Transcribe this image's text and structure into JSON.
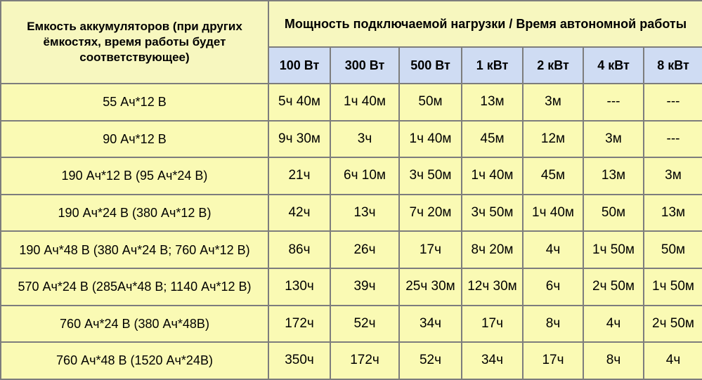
{
  "header": {
    "left": "Емкость аккумуляторов (при других ёмкостях, время работы будет соответствующее)",
    "top": "Мощность подключаемой нагрузки / Время автономной работы",
    "columns": [
      "100 Вт",
      "300 Вт",
      "500 Вт",
      "1 кВт",
      "2 кВт",
      "4 кВт",
      "8 кВт"
    ]
  },
  "rows": [
    {
      "capacity": "55 Ач*12 В",
      "values": [
        "5ч 40м",
        "1ч 40м",
        "50м",
        "13м",
        "3м",
        "---",
        "---"
      ]
    },
    {
      "capacity": "90 Ач*12 В",
      "values": [
        "9ч 30м",
        "3ч",
        "1ч 40м",
        "45м",
        "12м",
        "3м",
        "---"
      ]
    },
    {
      "capacity": "190 Ач*12 В (95 Ач*24 В)",
      "values": [
        "21ч",
        "6ч 10м",
        "3ч 50м",
        "1ч 40м",
        "45м",
        "13м",
        "3м"
      ]
    },
    {
      "capacity": "190 Ач*24 В (380 Ач*12 В)",
      "values": [
        "42ч",
        "13ч",
        "7ч 20м",
        "3ч 50м",
        "1ч 40м",
        "50м",
        "13м"
      ]
    },
    {
      "capacity": "190 Ач*48 В (380 Ач*24 В; 760 Ач*12 В)",
      "values": [
        "86ч",
        "26ч",
        "17ч",
        "8ч 20м",
        "4ч",
        "1ч 50м",
        "50м"
      ]
    },
    {
      "capacity": "570 Ач*24 В  (285Ач*48 В; 1140 Ач*12 В)",
      "values": [
        "130ч",
        "39ч",
        "25ч 30м",
        "12ч 30м",
        "6ч",
        "2ч 50м",
        "1ч 50м"
      ]
    },
    {
      "capacity": "760 Ач*24 В (380 Ач*48В)",
      "values": [
        "172ч",
        "52ч",
        "34ч",
        "17ч",
        "8ч",
        "4ч",
        "2ч 50м"
      ]
    },
    {
      "capacity": "760 Ач*48 В (1520 Ач*24В)",
      "values": [
        "350ч",
        "172ч",
        "52ч",
        "34ч",
        "17ч",
        "8ч",
        "4ч"
      ]
    }
  ]
}
